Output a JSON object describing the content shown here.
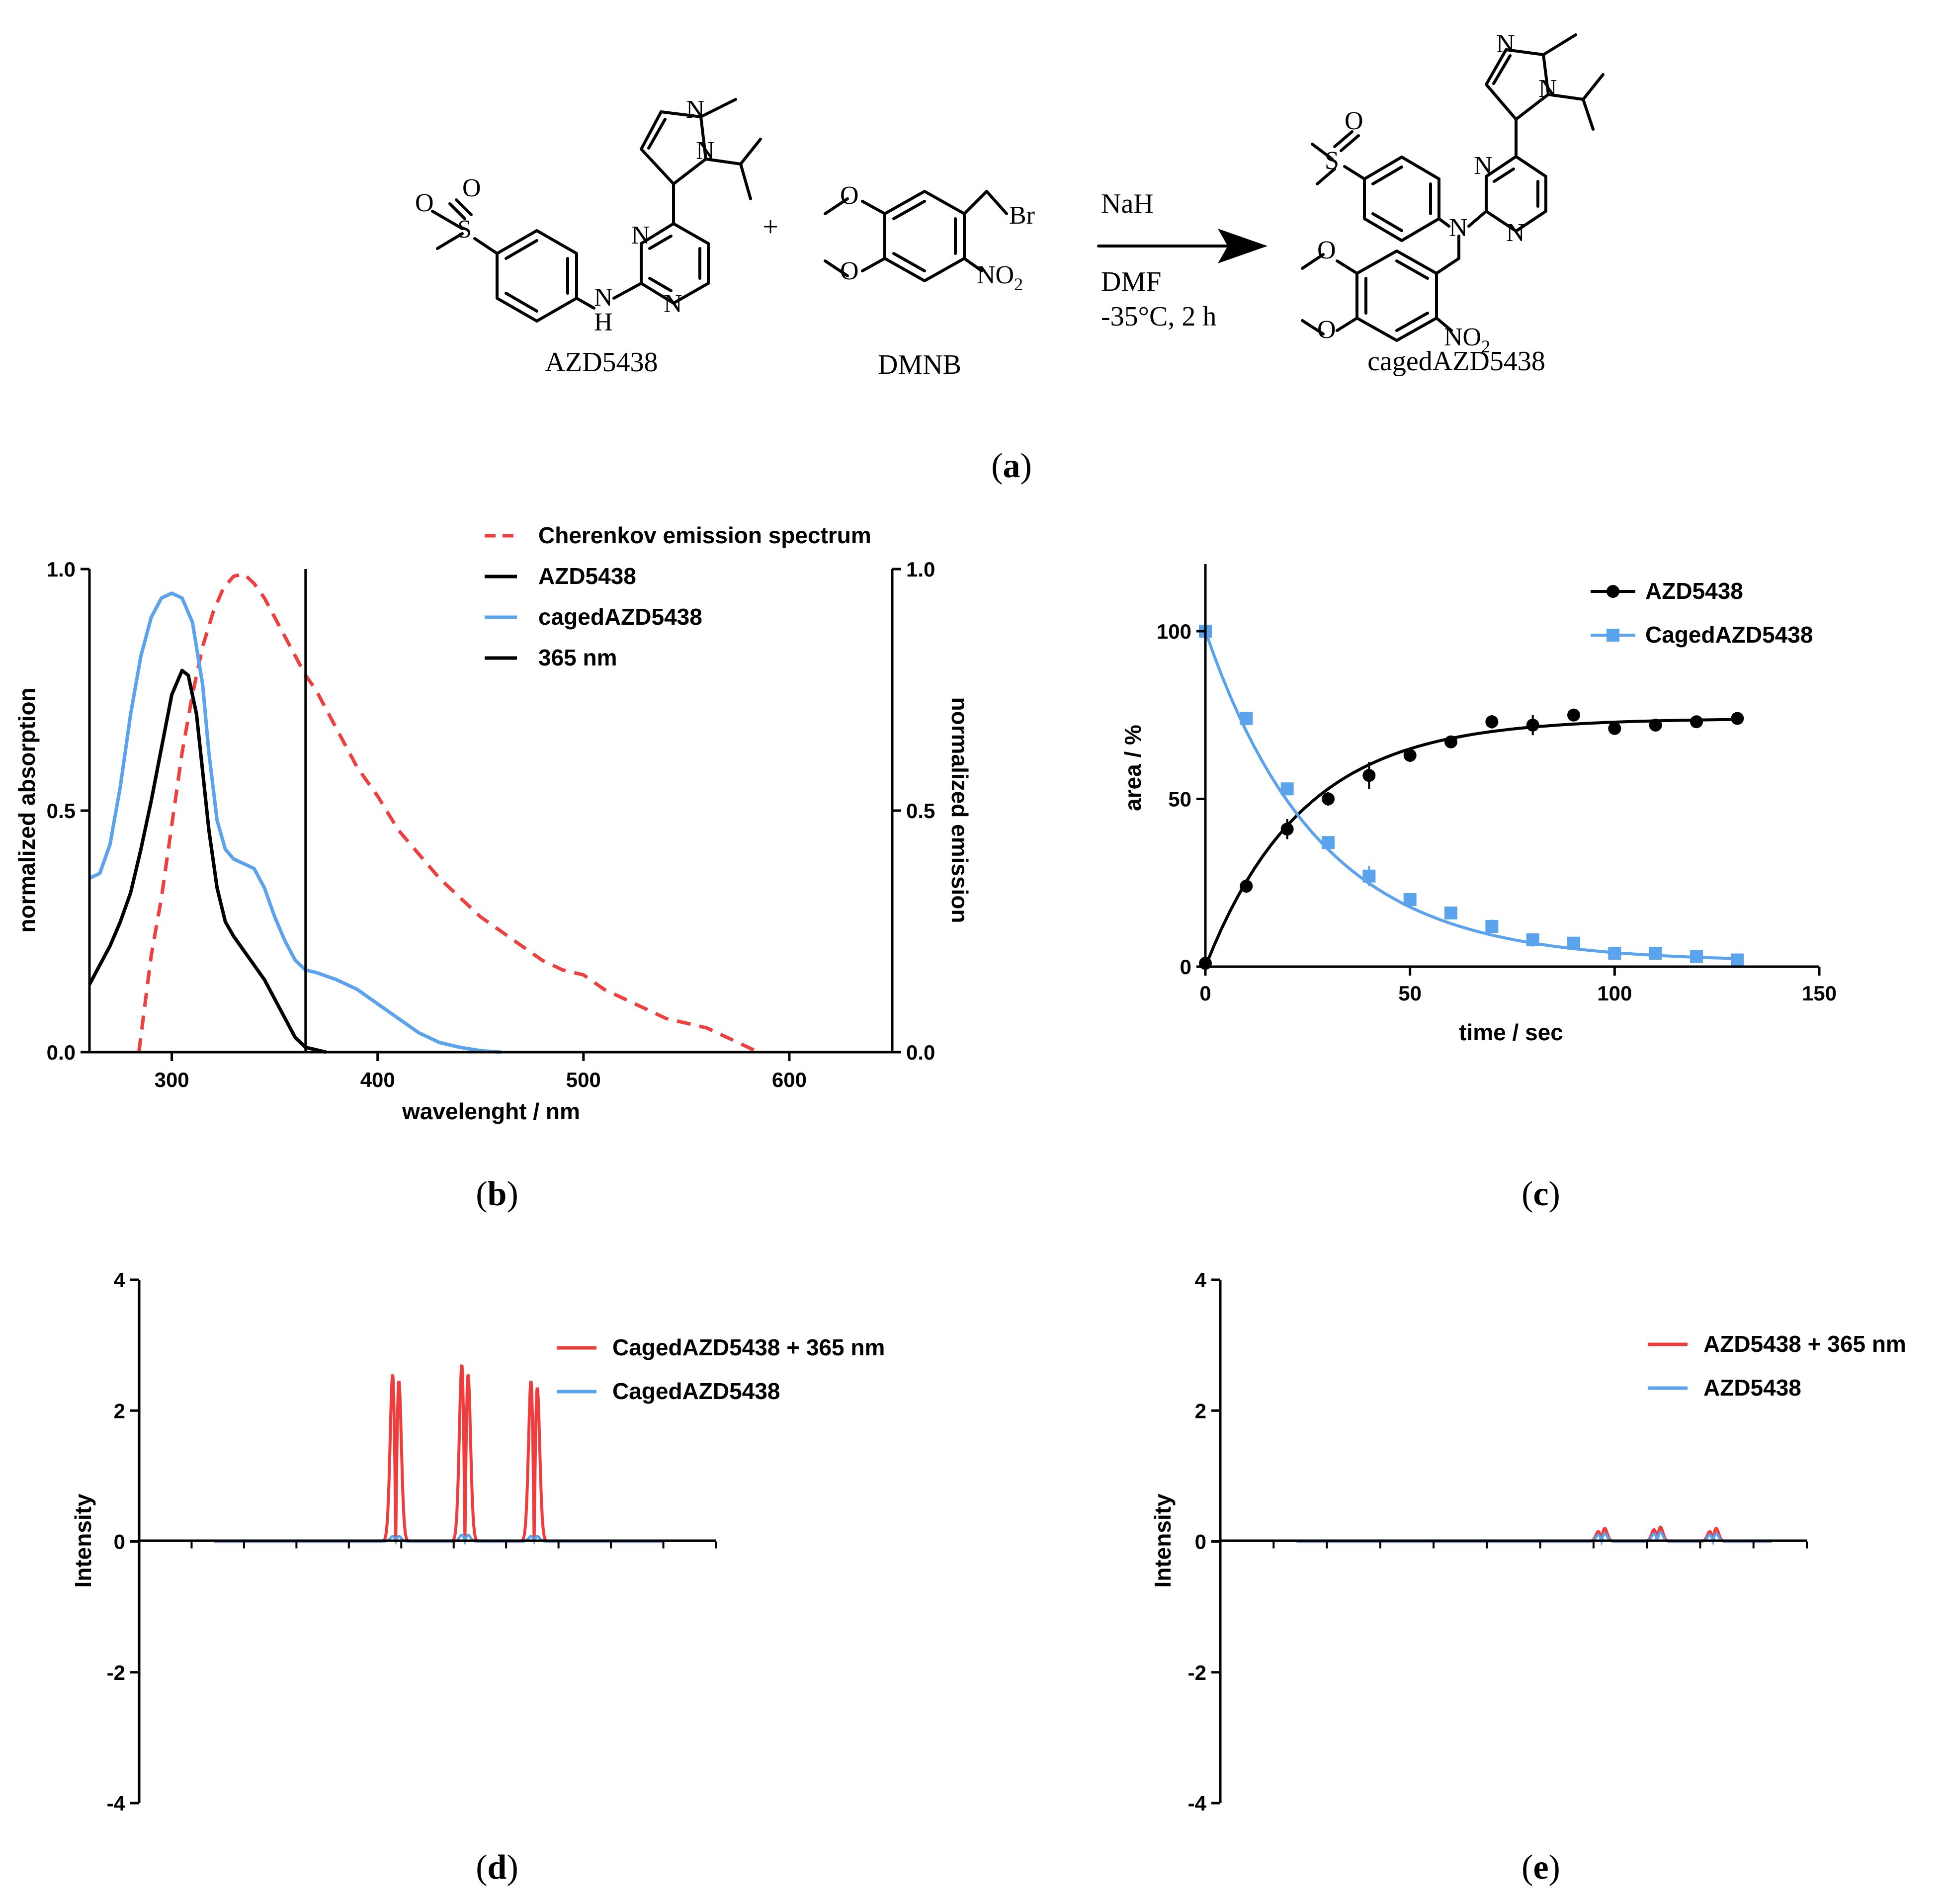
{
  "scheme": {
    "reactant1": "AZD5438",
    "reactant2": "DMNB",
    "product": "cagedAZD5438",
    "plus": "+",
    "reagent": "NaH",
    "solvent": "DMF",
    "conditions": "-35°C, 2 h",
    "atoms": {
      "N": "N",
      "H": "H",
      "S": "S",
      "O": "O",
      "Br": "Br",
      "NO2": "NO",
      "NO2_sub": "2"
    }
  },
  "panels": {
    "a": "a",
    "b": "b",
    "c": "c",
    "d": "d",
    "e": "e"
  },
  "colors": {
    "black": "#000000",
    "blue": "#5ba3ec",
    "red": "#ef3d3d",
    "dashed_red": "#ef4040"
  },
  "chart_data": [
    {
      "id": "b",
      "type": "line",
      "xlabel": "wavelenght / nm",
      "ylabel": "normalized absorption",
      "y2label": "normalized emission",
      "xlim": [
        260,
        650
      ],
      "ylim": [
        0,
        1
      ],
      "y2lim": [
        0,
        1
      ],
      "xticks": [
        "300",
        "400",
        "500",
        "600"
      ],
      "yticks": [
        "0.0",
        "0.5",
        "1.0"
      ],
      "y2ticks": [
        "0.0",
        "0.5",
        "1.0"
      ],
      "legend_position": "top-right",
      "vline_x": 365,
      "series": [
        {
          "name": "Cherenkov emission spectrum",
          "style": "dashed",
          "color": "#ef4040",
          "axis": "right",
          "x": [
            284,
            290,
            295,
            300,
            305,
            310,
            315,
            320,
            325,
            330,
            335,
            340,
            345,
            350,
            355,
            360,
            365,
            370,
            380,
            390,
            400,
            410,
            420,
            430,
            440,
            450,
            460,
            470,
            480,
            490,
            500,
            510,
            520,
            530,
            540,
            550,
            560,
            570,
            580,
            585
          ],
          "y": [
            0.0,
            0.2,
            0.32,
            0.47,
            0.62,
            0.74,
            0.84,
            0.91,
            0.96,
            0.985,
            0.99,
            0.97,
            0.94,
            0.9,
            0.86,
            0.82,
            0.78,
            0.75,
            0.67,
            0.59,
            0.53,
            0.46,
            0.41,
            0.36,
            0.32,
            0.28,
            0.25,
            0.22,
            0.19,
            0.17,
            0.16,
            0.13,
            0.11,
            0.09,
            0.07,
            0.06,
            0.05,
            0.03,
            0.01,
            0.0
          ]
        },
        {
          "name": "AZD5438",
          "style": "solid",
          "color": "#000000",
          "axis": "left",
          "x": [
            260,
            265,
            270,
            275,
            280,
            285,
            290,
            295,
            300,
            305,
            308,
            312,
            315,
            318,
            322,
            326,
            330,
            335,
            340,
            345,
            350,
            355,
            360,
            365,
            370,
            375
          ],
          "y": [
            0.14,
            0.18,
            0.22,
            0.27,
            0.33,
            0.42,
            0.52,
            0.63,
            0.74,
            0.79,
            0.78,
            0.7,
            0.58,
            0.46,
            0.34,
            0.27,
            0.24,
            0.21,
            0.18,
            0.15,
            0.11,
            0.07,
            0.03,
            0.01,
            0.005,
            0.0
          ]
        },
        {
          "name": "cagedAZD5438",
          "style": "solid",
          "color": "#5ba3ec",
          "axis": "left",
          "x": [
            260,
            265,
            270,
            275,
            280,
            285,
            290,
            295,
            300,
            305,
            310,
            315,
            318,
            322,
            326,
            330,
            335,
            340,
            345,
            350,
            355,
            360,
            365,
            370,
            380,
            390,
            400,
            410,
            420,
            430,
            440,
            450,
            460
          ],
          "y": [
            0.36,
            0.37,
            0.43,
            0.55,
            0.7,
            0.82,
            0.9,
            0.94,
            0.95,
            0.94,
            0.89,
            0.76,
            0.62,
            0.48,
            0.42,
            0.4,
            0.39,
            0.38,
            0.34,
            0.28,
            0.23,
            0.19,
            0.17,
            0.165,
            0.15,
            0.13,
            0.1,
            0.07,
            0.04,
            0.02,
            0.01,
            0.003,
            0.0
          ]
        },
        {
          "name": "365 nm",
          "style": "solid",
          "color": "#000000",
          "axis": "left",
          "x": [
            365,
            365
          ],
          "y": [
            0,
            1
          ]
        }
      ]
    },
    {
      "id": "c",
      "type": "scatter",
      "xlabel": "time / sec",
      "ylabel": "area / %",
      "xlim": [
        0,
        150
      ],
      "ylim": [
        0,
        120
      ],
      "xticks": [
        "0",
        "50",
        "100",
        "150"
      ],
      "yticks": [
        "0",
        "50",
        "100"
      ],
      "legend_position": "top-right",
      "series": [
        {
          "name": "AZD5438",
          "marker": "circle",
          "color": "#000000",
          "x": [
            0,
            10,
            20,
            30,
            40,
            50,
            60,
            70,
            80,
            90,
            100,
            110,
            120,
            130
          ],
          "y": [
            1,
            24,
            41,
            50,
            57,
            63,
            67,
            73,
            72,
            75,
            71,
            72,
            73,
            74
          ],
          "err": [
            1,
            2,
            3,
            2,
            4,
            2,
            1,
            2,
            3,
            1,
            1,
            1,
            1,
            1
          ]
        },
        {
          "name": "CagedAZD5438",
          "marker": "square",
          "color": "#5ba3ec",
          "x": [
            0,
            10,
            20,
            30,
            40,
            50,
            60,
            70,
            80,
            90,
            100,
            110,
            120,
            130
          ],
          "y": [
            100,
            74,
            53,
            37,
            27,
            20,
            16,
            12,
            8,
            7,
            4,
            4,
            3,
            2
          ],
          "err": [
            1,
            2,
            1,
            1,
            3,
            1,
            1,
            2,
            2,
            1,
            1,
            1,
            1,
            1
          ]
        }
      ],
      "fits": [
        {
          "name": "AZD5438",
          "kind": "rise",
          "plateau": 74,
          "k": 0.042,
          "color": "#000000"
        },
        {
          "name": "CagedAZD5438",
          "kind": "decay",
          "y0": 100,
          "plateau": 1.5,
          "k": 0.036,
          "color": "#5ba3ec"
        }
      ]
    },
    {
      "id": "d",
      "type": "line",
      "xlabel": "",
      "ylabel": "Intensity",
      "xlim": [
        0,
        100
      ],
      "ylim": [
        -4,
        4
      ],
      "yticks": [
        "-4",
        "-2",
        "0",
        "2",
        "4"
      ],
      "legend_position": "top-right",
      "series": [
        {
          "name": "CagedAZD5438 + 365 nm",
          "color": "#ef3d3d",
          "peaks": [
            {
              "center": 44.5,
              "up": 2.55,
              "down": -2.45
            },
            {
              "center": 56.5,
              "up": 2.7,
              "down": -2.55
            },
            {
              "center": 68.5,
              "up": 2.45,
              "down": -2.35
            }
          ]
        },
        {
          "name": "CagedAZD5438",
          "color": "#5ba3ec",
          "peaks": [
            {
              "center": 44.5,
              "up": 0.08,
              "down": -0.08
            },
            {
              "center": 56.5,
              "up": 0.1,
              "down": -0.1
            },
            {
              "center": 68.5,
              "up": 0.08,
              "down": -0.08
            }
          ]
        }
      ]
    },
    {
      "id": "e",
      "type": "line",
      "xlabel": "",
      "ylabel": "Intensity",
      "xlim": [
        0,
        100
      ],
      "ylim": [
        -4,
        4
      ],
      "yticks": [
        "-4",
        "-2",
        "0",
        "2",
        "4"
      ],
      "legend_position": "top-right",
      "series": [
        {
          "name": "AZD5438 + 365 nm",
          "color": "#ef3d3d",
          "peaks": [
            {
              "center": 65,
              "up": 0.15,
              "down": -0.2
            },
            {
              "center": 74.5,
              "up": 0.18,
              "down": -0.22
            },
            {
              "center": 84,
              "up": 0.15,
              "down": -0.2
            }
          ]
        },
        {
          "name": "AZD5438",
          "color": "#5ba3ec",
          "peaks": [
            {
              "center": 65,
              "up": 0.1,
              "down": -0.12
            },
            {
              "center": 74.5,
              "up": 0.12,
              "down": -0.14
            },
            {
              "center": 84,
              "up": 0.1,
              "down": -0.12
            }
          ]
        }
      ]
    }
  ]
}
